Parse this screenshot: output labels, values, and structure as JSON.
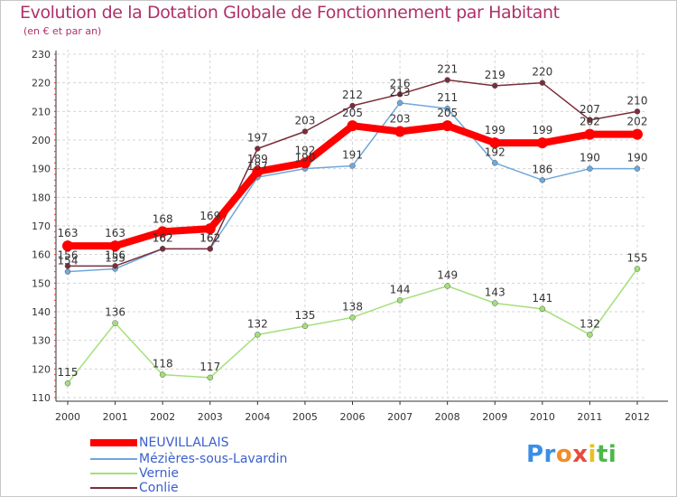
{
  "header": {
    "title": "Evolution de la Dotation Globale de Fonctionnement par Habitant",
    "subtitle": "(en € et par an)"
  },
  "brand": {
    "parts": [
      "Pr",
      "o",
      "x",
      "i",
      "ti"
    ],
    "colors": [
      "#3a8ee6",
      "#f28c28",
      "#e84a3c",
      "#e8c020",
      "#4cb84c"
    ]
  },
  "chart_data": {
    "type": "line",
    "title": "Evolution de la Dotation Globale de Fonctionnement par Habitant",
    "subtitle": "(en € et par an)",
    "xlabel": "",
    "ylabel": "",
    "ylim": [
      110,
      230
    ],
    "yticks": [
      110,
      120,
      130,
      140,
      150,
      160,
      170,
      180,
      190,
      200,
      210,
      220,
      230
    ],
    "categories": [
      "2000",
      "2001",
      "2002",
      "2003",
      "2004",
      "2005",
      "2006",
      "2007",
      "2008",
      "2009",
      "2010",
      "2011",
      "2012"
    ],
    "grid": true,
    "legend_position": "bottom-left",
    "series": [
      {
        "name": "NEUVILLALAIS",
        "color": "#ff0000",
        "values": [
          163,
          163,
          168,
          169,
          189,
          192,
          205,
          203,
          205,
          199,
          199,
          202,
          202
        ],
        "labels": [
          "163",
          "163",
          "168",
          "169",
          "189",
          "192",
          "205",
          "203",
          "205",
          "199",
          "199",
          "202",
          "202"
        ]
      },
      {
        "name": "Mézières-sous-Lavardin",
        "color": "#6fa8dc",
        "values": [
          154,
          155,
          162,
          162,
          187,
          190,
          191,
          213,
          211,
          192,
          186,
          190,
          190
        ],
        "labels": [
          "154",
          "155",
          "162",
          "162",
          "187",
          "190",
          "191",
          "213",
          "211",
          "192",
          "186",
          "190",
          "190"
        ]
      },
      {
        "name": "Vernie",
        "color": "#a3e07a",
        "values": [
          115,
          136,
          118,
          117,
          132,
          135,
          138,
          144,
          149,
          143,
          141,
          132,
          155
        ],
        "labels": [
          "115",
          "136",
          "118",
          "117",
          "132",
          "135",
          "138",
          "144",
          "149",
          "143",
          "141",
          "132",
          "155"
        ]
      },
      {
        "name": "Conlie",
        "color": "#7b2d3a",
        "values": [
          156,
          156,
          162,
          162,
          197,
          203,
          212,
          216,
          221,
          219,
          220,
          207,
          210
        ],
        "labels": [
          "156",
          "156",
          "162",
          "162",
          "197",
          "203",
          "212",
          "216",
          "221",
          "219",
          "220",
          "207",
          "210"
        ]
      }
    ]
  }
}
